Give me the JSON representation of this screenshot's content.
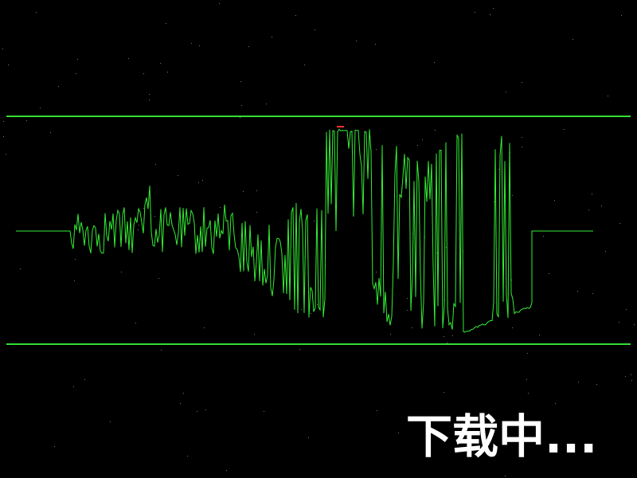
{
  "status": {
    "label": "下载中..."
  }
}
